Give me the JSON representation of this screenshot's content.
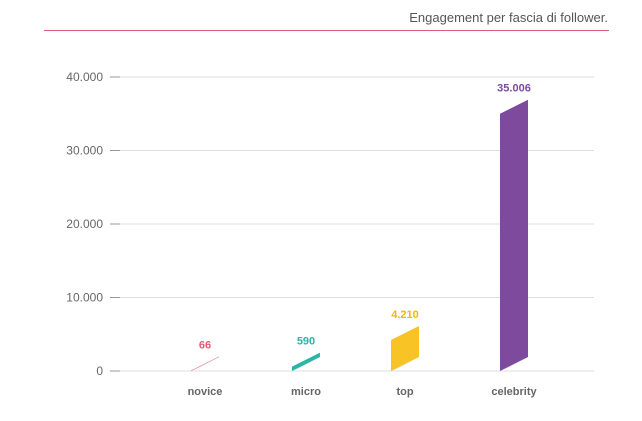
{
  "title": "Engagement per fascia di follower.",
  "colors": {
    "accent_line": "#e05a74",
    "grid": "#dddddd",
    "text": "#666666"
  },
  "chart_data": {
    "type": "bar",
    "title": "Engagement per fascia di follower.",
    "xlabel": "",
    "ylabel": "",
    "categories": [
      "novice",
      "micro",
      "top",
      "celebrity"
    ],
    "values": [
      66,
      590,
      4210,
      35006
    ],
    "value_labels": [
      "66",
      "590",
      "4.210",
      "35.006"
    ],
    "bar_colors": [
      "#e05a74",
      "#2bb5a8",
      "#f7c325",
      "#7e4a9e"
    ],
    "ylim": [
      0,
      40000
    ],
    "yticks": [
      0,
      10000,
      20000,
      30000,
      40000
    ],
    "ytick_labels": [
      "0",
      "10.000",
      "20.000",
      "30.000",
      "40.000"
    ],
    "grid": true,
    "legend": "none"
  }
}
